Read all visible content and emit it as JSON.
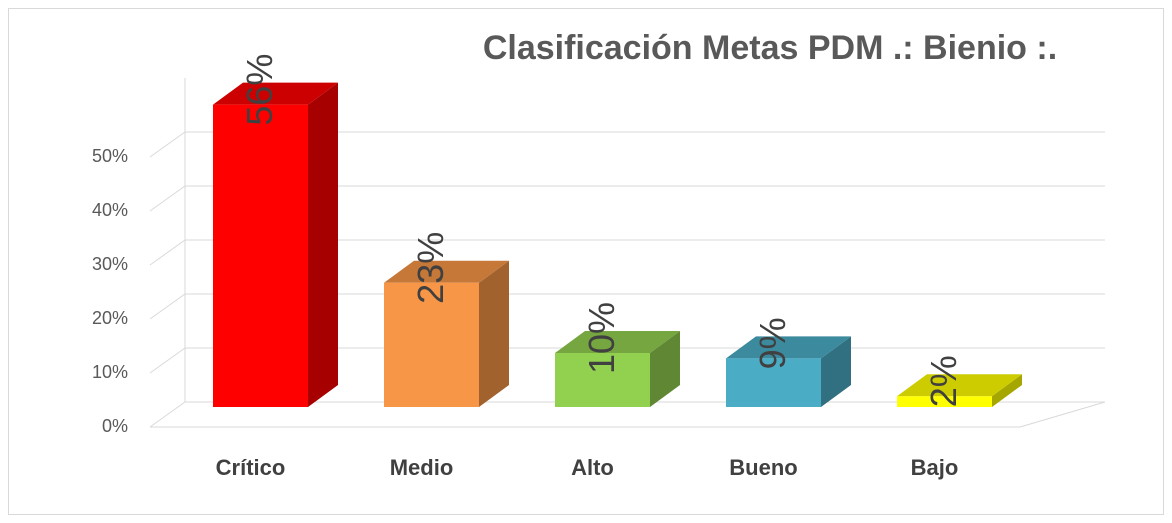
{
  "chart_data": {
    "type": "bar3d",
    "title": "Clasificación Metas PDM .: Bienio :.",
    "categories": [
      "Crítico",
      "Medio",
      "Alto",
      "Bueno",
      "Bajo"
    ],
    "values": [
      56,
      23,
      10,
      9,
      2
    ],
    "value_labels": [
      "56%",
      "23%",
      "10%",
      "9%",
      "2%"
    ],
    "colors": [
      "#ff0000",
      "#f79646",
      "#92d050",
      "#4bacc6",
      "#ffff00"
    ],
    "ylim": [
      0,
      60
    ],
    "yticks": [
      {
        "value": 0,
        "label": "0%"
      },
      {
        "value": 10,
        "label": "10%"
      },
      {
        "value": 20,
        "label": "20%"
      },
      {
        "value": 30,
        "label": "30%"
      },
      {
        "value": 40,
        "label": "40%"
      },
      {
        "value": 50,
        "label": "50%"
      }
    ],
    "grid": true
  }
}
